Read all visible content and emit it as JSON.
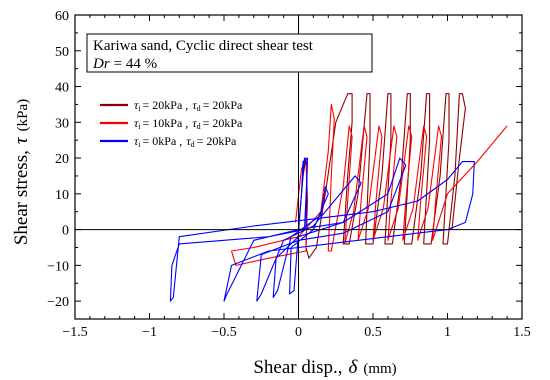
{
  "chart_data": {
    "type": "line",
    "xlabel": {
      "text": "Shear disp.,",
      "symbol": "δ",
      "unit": "(mm)"
    },
    "ylabel": {
      "text": "Shear stress,",
      "symbol": "τ",
      "unit": "(kPa)"
    },
    "xlim": [
      -1.5,
      1.5
    ],
    "ylim": [
      -25,
      60
    ],
    "xticks": [
      "−1.5",
      "−1",
      "−0.5",
      "0",
      "0.5",
      "1",
      "1.5"
    ],
    "yticks": [
      "−20",
      "−10",
      "0",
      "10",
      "20",
      "30",
      "40",
      "50",
      "60"
    ],
    "grid": false,
    "annotation": {
      "line1": "Kariwa sand, Cyclic direct shear test",
      "line2_symbol": "Dr",
      "line2_value": "= 44 %"
    },
    "legend_position": "upper-left",
    "series": [
      {
        "name": "τi = 20kPa , τd = 20kPa",
        "color": "#8b0000",
        "legend": {
          "tau_i": "= 20kPa",
          "tau_d": "= 20kPa"
        },
        "segments": [
          [
            [
              0,
              0
            ],
            [
              0.03,
              15
            ],
            [
              0.05,
              20
            ],
            [
              0.06,
              8
            ],
            [
              0.05,
              -5
            ],
            [
              0.07,
              -8
            ],
            [
              0.12,
              -5
            ],
            [
              0.18,
              10
            ],
            [
              0.25,
              30
            ],
            [
              0.33,
              38
            ],
            [
              0.36,
              38
            ],
            [
              0.36,
              30
            ],
            [
              0.33,
              15
            ],
            [
              0.3,
              -4
            ],
            [
              0.34,
              -4
            ],
            [
              0.4,
              10
            ],
            [
              0.46,
              38
            ],
            [
              0.48,
              38
            ],
            [
              0.48,
              25
            ],
            [
              0.45,
              -4
            ],
            [
              0.5,
              -4
            ],
            [
              0.56,
              15
            ],
            [
              0.6,
              38
            ],
            [
              0.62,
              38
            ],
            [
              0.62,
              25
            ],
            [
              0.58,
              -4
            ],
            [
              0.63,
              -4
            ],
            [
              0.69,
              15
            ],
            [
              0.73,
              38
            ],
            [
              0.75,
              38
            ],
            [
              0.75,
              25
            ],
            [
              0.71,
              -4
            ],
            [
              0.76,
              -4
            ],
            [
              0.82,
              15
            ],
            [
              0.86,
              38
            ],
            [
              0.88,
              38
            ],
            [
              0.88,
              25
            ],
            [
              0.84,
              -4
            ],
            [
              0.89,
              -4
            ],
            [
              0.95,
              15
            ],
            [
              0.99,
              38
            ],
            [
              1.01,
              38
            ],
            [
              1.01,
              25
            ],
            [
              0.97,
              -4
            ],
            [
              1.0,
              -4
            ],
            [
              1.05,
              15
            ],
            [
              1.08,
              38
            ],
            [
              1.1,
              38
            ],
            [
              1.12,
              34
            ],
            [
              1.08,
              20
            ],
            [
              1.03,
              0
            ]
          ]
        ]
      },
      {
        "name": "τi = 10kPa , τd = 20kPa",
        "color": "#ff0000",
        "legend": {
          "tau_i": "= 10kPa",
          "tau_d": "= 20kPa"
        },
        "segments": [
          [
            [
              -0.02,
              2
            ],
            [
              0.02,
              17
            ],
            [
              0.05,
              20
            ],
            [
              0.06,
              8
            ],
            [
              0.05,
              -6
            ],
            [
              -0.2,
              -8
            ],
            [
              -0.42,
              -10
            ],
            [
              -0.45,
              -6
            ],
            [
              -0.3,
              -5
            ],
            [
              0,
              -2
            ],
            [
              0.15,
              5
            ],
            [
              0.2,
              22
            ],
            [
              0.22,
              35
            ],
            [
              0.24,
              31
            ],
            [
              0.22,
              15
            ],
            [
              0.2,
              -6
            ],
            [
              0.22,
              -6
            ],
            [
              0.3,
              12
            ],
            [
              0.34,
              29
            ],
            [
              0.36,
              26
            ],
            [
              0.33,
              8
            ],
            [
              0.31,
              -4
            ],
            [
              0.37,
              5
            ],
            [
              0.44,
              29
            ],
            [
              0.46,
              26
            ],
            [
              0.42,
              8
            ],
            [
              0.4,
              -3
            ],
            [
              0.47,
              6
            ],
            [
              0.54,
              29
            ],
            [
              0.56,
              26
            ],
            [
              0.52,
              8
            ],
            [
              0.5,
              -3
            ],
            [
              0.57,
              6
            ],
            [
              0.64,
              29
            ],
            [
              0.66,
              26
            ],
            [
              0.62,
              8
            ],
            [
              0.6,
              -3
            ],
            [
              0.67,
              6
            ],
            [
              0.74,
              29
            ],
            [
              0.76,
              26
            ],
            [
              0.72,
              8
            ],
            [
              0.7,
              -3
            ],
            [
              0.77,
              6
            ],
            [
              0.84,
              29
            ],
            [
              0.86,
              26
            ],
            [
              0.82,
              8
            ],
            [
              0.8,
              -3
            ],
            [
              0.87,
              6
            ],
            [
              0.94,
              29
            ],
            [
              0.96,
              26
            ],
            [
              0.92,
              8
            ],
            [
              0.9,
              -3
            ],
            [
              1.0,
              10
            ],
            [
              1.2,
              19
            ],
            [
              1.4,
              29
            ]
          ]
        ]
      },
      {
        "name": "τi = 0kPa , τd = 20kPa",
        "color": "#0000ff",
        "legend": {
          "tau_i": "= 0kPa",
          "tau_d": "= 20kPa"
        },
        "segments": [
          [
            [
              0,
              0
            ],
            [
              0.02,
              10
            ],
            [
              0.04,
              20
            ],
            [
              0.06,
              18
            ],
            [
              0.04,
              0
            ],
            [
              -0.2,
              -2
            ],
            [
              -0.5,
              -3
            ],
            [
              -0.8,
              -4
            ],
            [
              -0.85,
              -10
            ],
            [
              -0.86,
              -20
            ],
            [
              -0.84,
              -19
            ],
            [
              -0.8,
              -2
            ],
            [
              -0.3,
              1
            ],
            [
              0.1,
              3
            ],
            [
              0.5,
              5
            ],
            [
              0.8,
              8
            ],
            [
              1.0,
              14
            ],
            [
              1.1,
              19
            ],
            [
              1.18,
              19
            ],
            [
              1.17,
              10
            ],
            [
              1.12,
              2
            ],
            [
              1.0,
              0
            ],
            [
              0.6,
              -2
            ],
            [
              0.2,
              -4
            ],
            [
              -0.2,
              -6
            ],
            [
              -0.45,
              -10
            ],
            [
              -0.5,
              -20
            ],
            [
              -0.48,
              -18
            ],
            [
              -0.3,
              -3
            ],
            [
              0.0,
              0
            ],
            [
              0.3,
              2
            ],
            [
              0.6,
              10
            ],
            [
              0.68,
              20
            ],
            [
              0.72,
              18
            ],
            [
              0.6,
              5
            ],
            [
              0.3,
              -1
            ],
            [
              0.0,
              -3
            ],
            [
              -0.25,
              -7
            ],
            [
              -0.28,
              -20
            ],
            [
              -0.25,
              -18
            ],
            [
              -0.1,
              -3
            ],
            [
              0.1,
              1
            ],
            [
              0.38,
              15
            ],
            [
              0.42,
              13
            ],
            [
              0.3,
              2
            ],
            [
              0.0,
              -2
            ],
            [
              -0.15,
              -8
            ],
            [
              -0.17,
              -19
            ],
            [
              -0.14,
              -17
            ],
            [
              -0.05,
              -2
            ],
            [
              0.15,
              4
            ],
            [
              0.18,
              12
            ],
            [
              0.2,
              10
            ],
            [
              0.1,
              0
            ],
            [
              -0.05,
              -5
            ],
            [
              -0.06,
              -18
            ],
            [
              -0.03,
              -17
            ],
            [
              0.02,
              10
            ],
            [
              0.03,
              19
            ],
            [
              0.06,
              20
            ],
            [
              0.05,
              0
            ]
          ]
        ]
      }
    ]
  }
}
